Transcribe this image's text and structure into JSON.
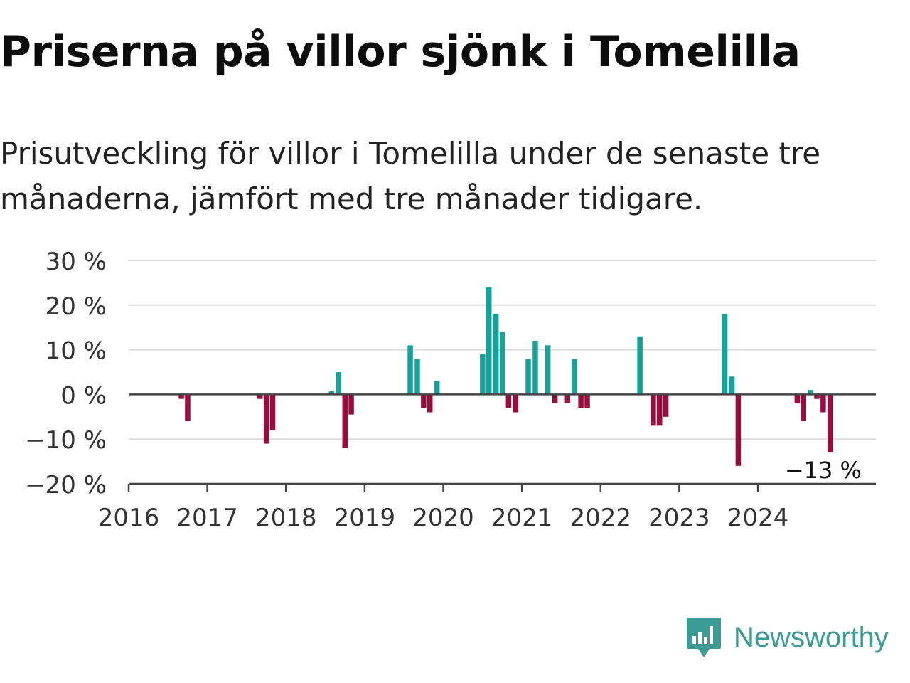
{
  "title": "Priserna på villor sjönk i Tomelilla",
  "subtitle": "Prisutveckling för villor i Tomelilla under de senaste tre månaderna, jämfört med tre månader tidigare.",
  "brand": {
    "name": "Newsworthy",
    "icon": "bar-chart-speech-bubble-icon",
    "color": "#3a9c95"
  },
  "chart_data": {
    "type": "bar",
    "unit": "%",
    "ylim": [
      -20,
      30
    ],
    "yticks": [
      30,
      20,
      10,
      0,
      -10,
      -20
    ],
    "ytick_labels": [
      "30 %",
      "20 %",
      "10 %",
      "0 %",
      "−10 %",
      "−20 %"
    ],
    "xlim": [
      2016,
      2025.5
    ],
    "xticks": [
      2016,
      2017,
      2018,
      2019,
      2020,
      2021,
      2022,
      2023,
      2024
    ],
    "xtick_labels": [
      "2016",
      "2017",
      "2018",
      "2019",
      "2020",
      "2021",
      "2022",
      "2023",
      "2024"
    ],
    "grid": true,
    "colors": {
      "positive": "#13a39b",
      "negative": "#9a0b3e",
      "grid": "#dcdcdc",
      "axis": "#444444"
    },
    "annotation": {
      "x": 2024.83,
      "value": -13,
      "text": "−13 %"
    },
    "x": [
      2016.67,
      2016.75,
      2017.67,
      2017.75,
      2017.83,
      2018.58,
      2018.67,
      2018.75,
      2018.83,
      2019.58,
      2019.67,
      2019.75,
      2019.83,
      2019.92,
      2020.5,
      2020.58,
      2020.67,
      2020.75,
      2020.83,
      2020.92,
      2021.08,
      2021.17,
      2021.33,
      2021.42,
      2021.58,
      2021.67,
      2021.75,
      2021.83,
      2022.5,
      2022.67,
      2022.75,
      2022.83,
      2023.58,
      2023.67,
      2023.75,
      2024.5,
      2024.58,
      2024.67,
      2024.75,
      2024.83,
      2024.92
    ],
    "values": [
      -1,
      -6,
      -1,
      -11,
      -8,
      0.7,
      5,
      -12,
      -4.5,
      11,
      8,
      -3,
      -4,
      3,
      9,
      24,
      18,
      14,
      -3,
      -4,
      8,
      12,
      11,
      -2,
      -2,
      8,
      -3,
      -3,
      13,
      -7,
      -7,
      -5,
      18,
      4,
      -16,
      -2,
      -6,
      1,
      -1,
      -4,
      -13
    ]
  }
}
